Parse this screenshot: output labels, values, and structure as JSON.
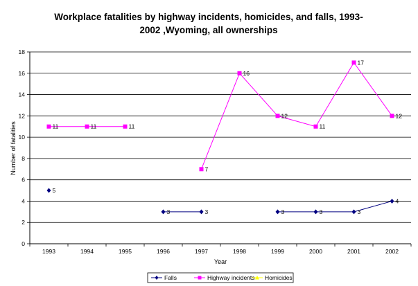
{
  "chart_data": {
    "type": "line",
    "title_line1": "Workplace fatalities by highway incidents, homicides, and falls, 1993-",
    "title_line2": "2002 ,Wyoming, all ownerships",
    "xlabel": "Year",
    "ylabel": "Number of fatalities",
    "categories": [
      "1993",
      "1994",
      "1995",
      "1996",
      "1997",
      "1998",
      "1999",
      "2000",
      "2001",
      "2002"
    ],
    "ylim": [
      0,
      18
    ],
    "yticks": [
      "0",
      "2",
      "4",
      "6",
      "8",
      "10",
      "12",
      "14",
      "16",
      "18"
    ],
    "grid": true,
    "legend_position": "bottom",
    "series": [
      {
        "name": "Falls",
        "color": "#000080",
        "marker": "diamond",
        "values": [
          5,
          null,
          null,
          3,
          3,
          null,
          3,
          3,
          3,
          4
        ]
      },
      {
        "name": "Highway incidents",
        "color": "#ff00ff",
        "marker": "square",
        "values": [
          11,
          11,
          11,
          null,
          7,
          16,
          12,
          11,
          17,
          12
        ]
      },
      {
        "name": "Homicides",
        "color": "#ffff00",
        "marker": "triangle",
        "values": [
          null,
          null,
          null,
          null,
          null,
          null,
          null,
          null,
          null,
          null
        ]
      }
    ]
  }
}
